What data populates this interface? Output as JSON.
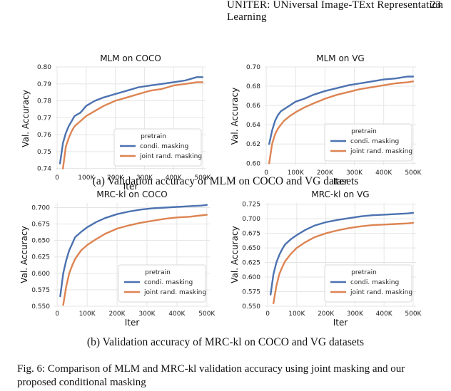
{
  "header": {
    "running_title": "UNITER: UNiversal Image-TExt Representation Learning",
    "page_number": "23"
  },
  "captions": {
    "sub_a": "(a) Validation accuracy of MLM on COCO and VG datasets",
    "sub_b": "(b) Validation accuracy of MRC-kl on COCO and VG datasets",
    "figure": "Fig. 6: Comparison of MLM and MRC-kl validation accuracy using joint masking and our proposed conditional masking"
  },
  "chart_data": [
    {
      "id": "mlm-coco",
      "type": "line",
      "title": "MLM on COCO",
      "xlabel": "Iter",
      "ylabel": "Val. Accuracy",
      "xlim": [
        -5000,
        510000
      ],
      "ylim": [
        0.739,
        0.8
      ],
      "xticks": [
        0,
        100000,
        200000,
        300000,
        400000,
        500000
      ],
      "xtick_labels": [
        "0",
        "100K",
        "200K",
        "300K",
        "400K",
        "500K"
      ],
      "yticks": [
        0.74,
        0.75,
        0.76,
        0.77,
        0.78,
        0.79,
        0.8
      ],
      "ytick_labels": [
        "0.74",
        "0.75",
        "0.76",
        "0.77",
        "0.78",
        "0.79",
        "0.80"
      ],
      "grid": true,
      "legend": {
        "title": "pretrain",
        "placement": "lower-right"
      },
      "series": [
        {
          "name": "condi. masking",
          "color": "#4c72b0",
          "x": [
            10000,
            20000,
            30000,
            40000,
            50000,
            60000,
            80000,
            100000,
            130000,
            160000,
            200000,
            240000,
            280000,
            320000,
            360000,
            400000,
            440000,
            480000,
            500000
          ],
          "y": [
            0.743,
            0.755,
            0.761,
            0.765,
            0.768,
            0.771,
            0.773,
            0.777,
            0.78,
            0.782,
            0.784,
            0.786,
            0.788,
            0.789,
            0.79,
            0.791,
            0.792,
            0.794,
            0.794
          ]
        },
        {
          "name": "joint rand. masking",
          "color": "#dd8452",
          "x": [
            20000,
            30000,
            40000,
            50000,
            60000,
            80000,
            100000,
            130000,
            160000,
            200000,
            240000,
            280000,
            320000,
            360000,
            400000,
            440000,
            480000,
            500000
          ],
          "y": [
            0.74,
            0.753,
            0.758,
            0.762,
            0.765,
            0.768,
            0.771,
            0.774,
            0.777,
            0.78,
            0.782,
            0.784,
            0.786,
            0.787,
            0.789,
            0.79,
            0.791,
            0.791
          ]
        }
      ]
    },
    {
      "id": "mlm-vg",
      "type": "line",
      "title": "MLM on VG",
      "xlabel": "Iter",
      "ylabel": "Val. Accuracy",
      "xlim": [
        -5000,
        510000
      ],
      "ylim": [
        0.598,
        0.7
      ],
      "xticks": [
        0,
        100000,
        200000,
        300000,
        400000,
        500000
      ],
      "xtick_labels": [
        "0",
        "100K",
        "200K",
        "300K",
        "400K",
        "500K"
      ],
      "yticks": [
        0.6,
        0.62,
        0.64,
        0.66,
        0.68,
        0.7
      ],
      "ytick_labels": [
        "0.60",
        "0.62",
        "0.64",
        "0.66",
        "0.68",
        "0.70"
      ],
      "grid": true,
      "legend": {
        "title": "pretrain",
        "placement": "lower-right"
      },
      "series": [
        {
          "name": "condi. masking",
          "color": "#4c72b0",
          "x": [
            10000,
            20000,
            30000,
            40000,
            50000,
            60000,
            80000,
            100000,
            130000,
            160000,
            200000,
            240000,
            280000,
            320000,
            360000,
            400000,
            440000,
            480000,
            500000
          ],
          "y": [
            0.62,
            0.634,
            0.644,
            0.65,
            0.654,
            0.656,
            0.66,
            0.664,
            0.667,
            0.671,
            0.675,
            0.678,
            0.681,
            0.683,
            0.685,
            0.687,
            0.688,
            0.69,
            0.69
          ]
        },
        {
          "name": "joint rand. masking",
          "color": "#dd8452",
          "x": [
            10000,
            20000,
            30000,
            40000,
            50000,
            60000,
            80000,
            100000,
            130000,
            160000,
            200000,
            240000,
            280000,
            320000,
            360000,
            400000,
            440000,
            480000,
            500000
          ],
          "y": [
            0.6,
            0.62,
            0.63,
            0.636,
            0.64,
            0.644,
            0.649,
            0.653,
            0.658,
            0.662,
            0.667,
            0.671,
            0.674,
            0.677,
            0.679,
            0.681,
            0.683,
            0.684,
            0.685
          ]
        }
      ]
    },
    {
      "id": "mrckl-coco",
      "type": "line",
      "title": "MRC-kl on COCO",
      "xlabel": "Iter",
      "ylabel": "Val. Accuracy",
      "xlim": [
        -10000,
        510000
      ],
      "ylim": [
        0.55,
        0.707
      ],
      "xticks": [
        0,
        100000,
        200000,
        300000,
        400000,
        500000
      ],
      "xtick_labels": [
        "0",
        "100K",
        "200K",
        "300K",
        "400K",
        "500K"
      ],
      "yticks": [
        0.55,
        0.575,
        0.6,
        0.625,
        0.65,
        0.675,
        0.7
      ],
      "ytick_labels": [
        "0.550",
        "0.575",
        "0.600",
        "0.625",
        "0.650",
        "0.675",
        "0.700"
      ],
      "grid": true,
      "legend": {
        "title": "pretrain",
        "placement": "lower-right"
      },
      "series": [
        {
          "name": "condi. masking",
          "color": "#4c72b0",
          "x": [
            10000,
            20000,
            30000,
            40000,
            50000,
            60000,
            80000,
            100000,
            130000,
            160000,
            200000,
            240000,
            280000,
            320000,
            360000,
            400000,
            440000,
            480000,
            500000
          ],
          "y": [
            0.565,
            0.6,
            0.62,
            0.635,
            0.645,
            0.655,
            0.663,
            0.67,
            0.678,
            0.684,
            0.69,
            0.694,
            0.697,
            0.699,
            0.7,
            0.701,
            0.702,
            0.703,
            0.704
          ]
        },
        {
          "name": "joint rand. masking",
          "color": "#dd8452",
          "x": [
            20000,
            30000,
            40000,
            50000,
            60000,
            80000,
            100000,
            130000,
            160000,
            200000,
            240000,
            280000,
            320000,
            360000,
            400000,
            440000,
            480000,
            500000
          ],
          "y": [
            0.552,
            0.58,
            0.6,
            0.612,
            0.622,
            0.635,
            0.643,
            0.652,
            0.66,
            0.668,
            0.673,
            0.677,
            0.68,
            0.683,
            0.685,
            0.686,
            0.688,
            0.689
          ]
        }
      ]
    },
    {
      "id": "mrckl-vg",
      "type": "line",
      "title": "MRC-kl on VG",
      "xlabel": "Iter",
      "ylabel": "Val. Accuracy",
      "xlim": [
        -10000,
        510000
      ],
      "ylim": [
        0.55,
        0.727
      ],
      "xticks": [
        0,
        100000,
        200000,
        300000,
        400000,
        500000
      ],
      "xtick_labels": [
        "0",
        "100K",
        "200K",
        "300K",
        "400K",
        "500K"
      ],
      "yticks": [
        0.55,
        0.575,
        0.6,
        0.625,
        0.65,
        0.675,
        0.7,
        0.725
      ],
      "ytick_labels": [
        "0.550",
        "0.575",
        "0.600",
        "0.625",
        "0.650",
        "0.675",
        "0.700",
        "0.725"
      ],
      "grid": true,
      "legend": {
        "title": "pretrain",
        "placement": "lower-right"
      },
      "series": [
        {
          "name": "condi. masking",
          "color": "#4c72b0",
          "x": [
            10000,
            20000,
            30000,
            40000,
            50000,
            60000,
            80000,
            100000,
            130000,
            160000,
            200000,
            240000,
            280000,
            320000,
            360000,
            400000,
            440000,
            480000,
            500000
          ],
          "y": [
            0.57,
            0.605,
            0.625,
            0.638,
            0.648,
            0.656,
            0.665,
            0.672,
            0.681,
            0.688,
            0.694,
            0.698,
            0.701,
            0.704,
            0.706,
            0.707,
            0.708,
            0.709,
            0.71
          ]
        },
        {
          "name": "joint rand. masking",
          "color": "#dd8452",
          "x": [
            20000,
            30000,
            40000,
            50000,
            60000,
            80000,
            100000,
            130000,
            160000,
            200000,
            240000,
            280000,
            320000,
            360000,
            400000,
            440000,
            480000,
            500000
          ],
          "y": [
            0.555,
            0.585,
            0.605,
            0.617,
            0.627,
            0.64,
            0.65,
            0.66,
            0.668,
            0.675,
            0.68,
            0.684,
            0.687,
            0.689,
            0.69,
            0.691,
            0.692,
            0.693
          ]
        }
      ]
    }
  ]
}
